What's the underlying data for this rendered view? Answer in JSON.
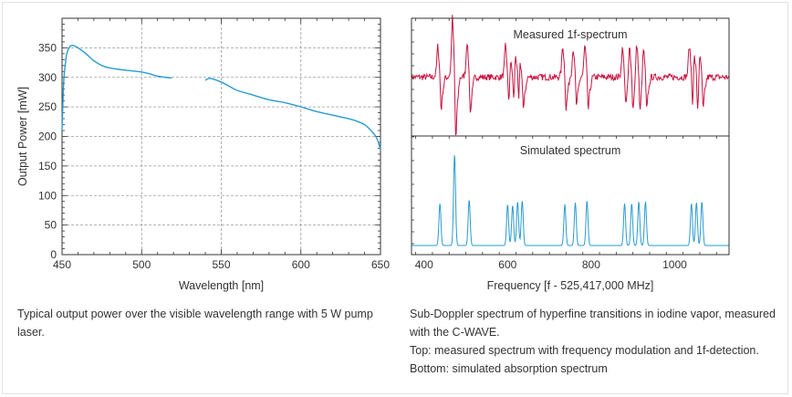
{
  "colors": {
    "left_curve": "#2a9bd0",
    "measured": "#c8133f",
    "simulated": "#2a9bd0",
    "grid": "#9a9a9a",
    "axis": "#333333"
  },
  "captions": {
    "left": "Typical output power over the visible wavelength range with 5 W pump laser.",
    "right_lines": [
      "Sub-Doppler spectrum of hyperfine transitions in iodine vapor, measured with the C-WAVE.",
      "Top: measured spectrum with frequency modulation and 1f-detection.",
      "Bottom: simulated absorption spectrum"
    ]
  },
  "chart_data": [
    {
      "type": "line",
      "xlabel": "Wavelength [nm]",
      "ylabel": "Output Power [mW]",
      "xlim": [
        450,
        650
      ],
      "ylim": [
        0,
        400
      ],
      "xticks": [
        450,
        500,
        550,
        600,
        650
      ],
      "yticks": [
        0,
        50,
        100,
        150,
        200,
        250,
        300,
        350
      ],
      "grid": true,
      "series": [
        {
          "segments": [
            {
              "x": [
                450,
                451,
                452,
                453,
                455,
                457,
                460,
                465,
                470,
                475,
                480,
                490,
                500,
                505,
                510,
                515,
                519
              ],
              "y": [
                210,
                290,
                320,
                340,
                352,
                354,
                350,
                340,
                328,
                320,
                316,
                312,
                309,
                306,
                302,
                300,
                299
              ]
            },
            {
              "x": [
                540,
                542,
                545,
                550,
                555,
                560,
                570,
                580,
                590,
                600,
                610,
                620,
                630,
                635,
                640,
                643,
                646,
                648,
                650
              ],
              "y": [
                295,
                298,
                297,
                292,
                285,
                278,
                270,
                262,
                257,
                250,
                242,
                236,
                230,
                226,
                220,
                213,
                204,
                195,
                178
              ]
            }
          ]
        }
      ]
    },
    {
      "type": "line",
      "title": "Measured 1f-spectrum",
      "xlim": [
        370,
        1130
      ],
      "ylim": [
        -1,
        1
      ],
      "baseline": 0,
      "noise": 0.06,
      "peaks": [
        {
          "x": 438,
          "a": 0.55
        },
        {
          "x": 473,
          "a": 1.05
        },
        {
          "x": 508,
          "a": 0.62
        },
        {
          "x": 600,
          "a": 0.55
        },
        {
          "x": 612,
          "a": 0.5
        },
        {
          "x": 624,
          "a": 0.6
        },
        {
          "x": 635,
          "a": 0.55
        },
        {
          "x": 737,
          "a": 0.55
        },
        {
          "x": 762,
          "a": 0.5
        },
        {
          "x": 790,
          "a": 0.55
        },
        {
          "x": 880,
          "a": 0.5
        },
        {
          "x": 897,
          "a": 0.55
        },
        {
          "x": 914,
          "a": 0.6
        },
        {
          "x": 930,
          "a": 0.55
        },
        {
          "x": 1040,
          "a": 0.55
        },
        {
          "x": 1052,
          "a": 0.6
        },
        {
          "x": 1065,
          "a": 0.55
        }
      ],
      "width": 4
    },
    {
      "type": "line",
      "title": "Simulated spectrum",
      "xlabel": "Frequency [f - 525,417,000 MHz]",
      "xlim": [
        370,
        1130
      ],
      "xticks": [
        400,
        600,
        800,
        1000
      ],
      "ylim": [
        0,
        1.05
      ],
      "baseline": 0.02,
      "peaks": [
        {
          "x": 438,
          "a": 0.46
        },
        {
          "x": 473,
          "a": 1.0
        },
        {
          "x": 508,
          "a": 0.5
        },
        {
          "x": 600,
          "a": 0.45
        },
        {
          "x": 612,
          "a": 0.44
        },
        {
          "x": 624,
          "a": 0.48
        },
        {
          "x": 635,
          "a": 0.49
        },
        {
          "x": 737,
          "a": 0.45
        },
        {
          "x": 762,
          "a": 0.47
        },
        {
          "x": 790,
          "a": 0.49
        },
        {
          "x": 880,
          "a": 0.46
        },
        {
          "x": 897,
          "a": 0.46
        },
        {
          "x": 914,
          "a": 0.48
        },
        {
          "x": 930,
          "a": 0.48
        },
        {
          "x": 1040,
          "a": 0.46
        },
        {
          "x": 1052,
          "a": 0.47
        },
        {
          "x": 1065,
          "a": 0.48
        }
      ],
      "width": 4
    }
  ]
}
